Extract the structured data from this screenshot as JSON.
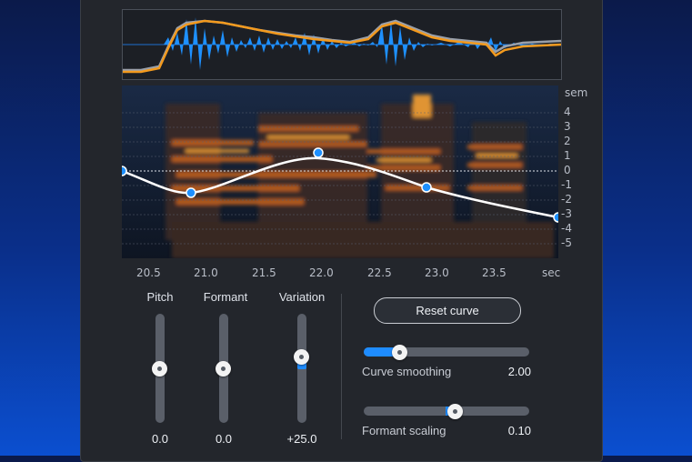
{
  "colors": {
    "panel": "#23262c",
    "accent": "#1e8cff",
    "waveform": "#1e90ff",
    "pitch_curve": "#f39a1e",
    "correction_curve": "#ffffff"
  },
  "spectrogram": {
    "y_unit": "sem",
    "y_ticks": [
      "4",
      "3",
      "2",
      "1",
      "0",
      "-1",
      "-2",
      "-3",
      "-4",
      "-5"
    ],
    "x_unit": "sec",
    "x_ticks": [
      "20.5",
      "21.0",
      "21.5",
      "22.0",
      "22.5",
      "23.0",
      "23.5"
    ]
  },
  "vertical_sliders": [
    {
      "label": "Pitch",
      "value": "0.0",
      "level": 0.5
    },
    {
      "label": "Formant",
      "value": "0.0",
      "level": 0.5
    },
    {
      "label": "Variation",
      "value": "+25.0",
      "level": 0.62
    }
  ],
  "reset_button": "Reset curve",
  "curve_smoothing": {
    "label": "Curve smoothing",
    "value": "2.00",
    "level": 0.2
  },
  "formant_scaling": {
    "label": "Formant scaling",
    "value": "0.10",
    "level": 0.55
  }
}
